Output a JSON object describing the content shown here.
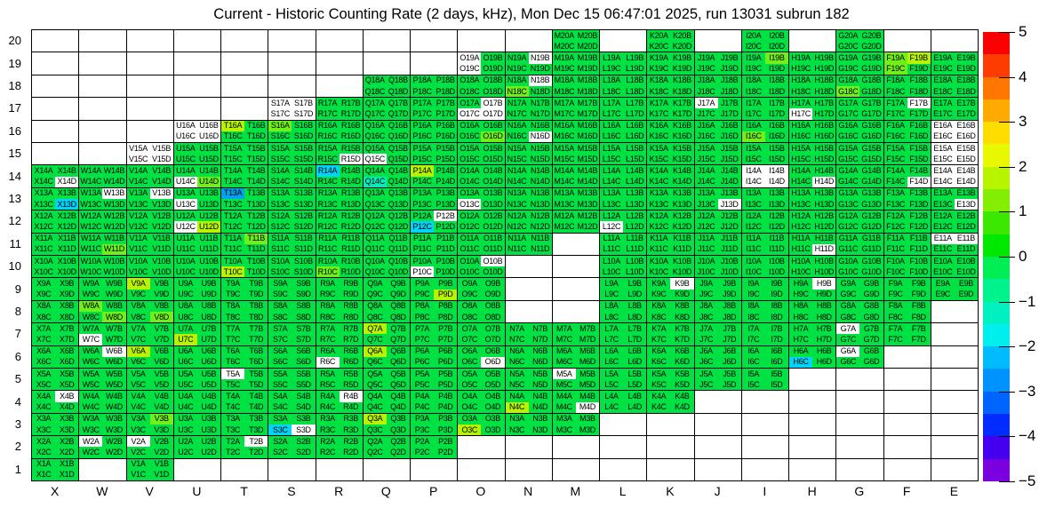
{
  "title": "Current - Historic Counting Rate (2 days, kHz), Mon Dec 15 06:47:01 2025, run 13031 subrun 182",
  "palette": {
    "default": "#00e243",
    "white": "#ffffff",
    "y1": "#70f018",
    "y2": "#b8f400",
    "aq": "#00eebe",
    "c1": "#00d4f8",
    "c2": "#00a2f0"
  },
  "chart_data": {
    "type": "heatmap",
    "title": "Current - Historic Counting Rate (2 days, kHz), Mon Dec 15 06:47:01 2025, run 13031 subrun 182",
    "xlabel": "",
    "ylabel": "",
    "value_range": [
      -5,
      5
    ],
    "grid": "on",
    "legend_position": "right-colorbar",
    "columns": [
      "X",
      "W",
      "V",
      "U",
      "T",
      "S",
      "R",
      "Q",
      "P",
      "O",
      "N",
      "M",
      "L",
      "K",
      "J",
      "I",
      "H",
      "G",
      "F",
      "E"
    ],
    "rows": [
      20,
      19,
      18,
      17,
      16,
      15,
      14,
      13,
      12,
      11,
      10,
      9,
      8,
      7,
      6,
      5,
      4,
      3,
      2,
      1
    ],
    "quadrant_letters": [
      "A",
      "B",
      "C",
      "D"
    ],
    "label_pattern": "{column}{row}{quadrant}",
    "cells_by_row": {
      "20": [
        "M",
        "K",
        "I",
        "G"
      ],
      "19": [
        "O",
        "N",
        "M",
        "L",
        "K",
        "J",
        "I",
        "H",
        "G",
        "F",
        "E"
      ],
      "18": [
        "Q",
        "P",
        "O",
        "N",
        "M",
        "L",
        "K",
        "J",
        "I",
        "H",
        "G",
        "F",
        "E"
      ],
      "17": [
        "S",
        "R",
        "Q",
        "P",
        "O",
        "N",
        "M",
        "L",
        "K",
        "J",
        "I",
        "H",
        "G",
        "F",
        "E"
      ],
      "16": [
        "U",
        "T",
        "S",
        "R",
        "Q",
        "P",
        "O",
        "N",
        "M",
        "L",
        "K",
        "J",
        "I",
        "H",
        "G",
        "F",
        "E"
      ],
      "15": [
        "V",
        "U",
        "T",
        "S",
        "R",
        "Q",
        "P",
        "O",
        "N",
        "M",
        "L",
        "K",
        "J",
        "I",
        "H",
        "G",
        "F",
        "E"
      ],
      "14": [
        "X",
        "W",
        "V",
        "U",
        "T",
        "S",
        "R",
        "Q",
        "P",
        "O",
        "N",
        "M",
        "L",
        "K",
        "J",
        "I",
        "H",
        "G",
        "F",
        "E"
      ],
      "13": [
        "X",
        "W",
        "V",
        "U",
        "T",
        "S",
        "R",
        "Q",
        "P",
        "O",
        "N",
        "M",
        "L",
        "K",
        "J",
        "I",
        "H",
        "G",
        "F",
        "E"
      ],
      "12": [
        "X",
        "W",
        "V",
        "U",
        "T",
        "S",
        "R",
        "Q",
        "P",
        "O",
        "N",
        "M",
        "L",
        "K",
        "J",
        "I",
        "H",
        "G",
        "F",
        "E"
      ],
      "11": [
        "X",
        "W",
        "V",
        "U",
        "T",
        "S",
        "R",
        "Q",
        "P",
        "O",
        "N",
        "L",
        "K",
        "J",
        "I",
        "H",
        "G",
        "F",
        "E"
      ],
      "10": [
        "X",
        "W",
        "V",
        "U",
        "T",
        "S",
        "R",
        "Q",
        "P",
        "O",
        "L",
        "K",
        "J",
        "I",
        "H",
        "G",
        "F",
        "E"
      ],
      "9": [
        "X",
        "W",
        "V",
        "U",
        "T",
        "S",
        "R",
        "Q",
        "P",
        "O",
        "L",
        "K",
        "J",
        "I",
        "H",
        "G",
        "F",
        "E"
      ],
      "8": [
        "X",
        "W",
        "V",
        "U",
        "T",
        "S",
        "R",
        "Q",
        "P",
        "O",
        "L",
        "K",
        "J",
        "I",
        "H",
        "G",
        "F"
      ],
      "7": [
        "X",
        "W",
        "V",
        "U",
        "T",
        "S",
        "R",
        "Q",
        "P",
        "O",
        "N",
        "M",
        "L",
        "K",
        "J",
        "I",
        "H",
        "G",
        "F"
      ],
      "6": [
        "X",
        "W",
        "V",
        "U",
        "T",
        "S",
        "R",
        "Q",
        "P",
        "O",
        "N",
        "M",
        "L",
        "K",
        "J",
        "I",
        "H",
        "G"
      ],
      "5": [
        "X",
        "W",
        "V",
        "U",
        "T",
        "S",
        "R",
        "Q",
        "P",
        "O",
        "N",
        "M",
        "L",
        "K",
        "J",
        "I"
      ],
      "4": [
        "X",
        "W",
        "V",
        "U",
        "T",
        "S",
        "R",
        "Q",
        "P",
        "O",
        "N",
        "M",
        "L",
        "K"
      ],
      "3": [
        "X",
        "W",
        "V",
        "U",
        "T",
        "S",
        "R",
        "Q",
        "P",
        "O",
        "N",
        "M"
      ],
      "2": [
        "X",
        "W",
        "V",
        "U",
        "T",
        "S",
        "R",
        "Q",
        "P"
      ],
      "1": [
        "X",
        "V"
      ]
    },
    "overrides": {
      "white": [
        "S17A",
        "S17B",
        "S17C",
        "S17D",
        "U16A",
        "U16B",
        "U16C",
        "U16D",
        "V15A",
        "V15B",
        "V15C",
        "V15D",
        "O19A",
        "O19C",
        "N19B",
        "N18B",
        "O17B",
        "O17C",
        "O17D",
        "N16D",
        "R15D",
        "Q15C",
        "J17A",
        "H17C",
        "F17B",
        "E16A",
        "E16B",
        "E16C",
        "E16D",
        "E15A",
        "E15B",
        "E15C",
        "E15D",
        "E14A",
        "E14B",
        "E14C",
        "E14D",
        "I14A",
        "I14B",
        "I14C",
        "I14D",
        "X14D",
        "U14C",
        "H14D",
        "F14D",
        "W13B",
        "V13B",
        "U13C",
        "O13C",
        "J13D",
        "E13D",
        "P12B",
        "U12C",
        "L12C",
        "H11D",
        "E11A",
        "E11B",
        "P10C",
        "O10B",
        "K9B",
        "H9B",
        "W7C",
        "G7A",
        "W6B",
        "R6C",
        "O6D",
        "G6A",
        "T5A",
        "M5A",
        "X4B",
        "R4B",
        "M4D",
        "S3D",
        "W2A",
        "V2A",
        "T2B"
      ],
      "y2": [
        "T16A",
        "F19B",
        "P14A",
        "U12D",
        "T10C",
        "V9A",
        "P9D",
        "U7C",
        "Q7A",
        "V6A",
        "Q6A",
        "N4C",
        "Q3A",
        "O3C"
      ],
      "y1": [
        "S16A",
        "O16D",
        "N18C",
        "G18C",
        "I19B",
        "F19A",
        "F19C",
        "I16C",
        "U14D",
        "W11D",
        "T11B",
        "R10C",
        "W8A",
        "W8D",
        "V8D",
        "V3B"
      ],
      "aq": [
        "Q14C"
      ],
      "c1": [
        "R14A",
        "X13D",
        "P12C",
        "S3C",
        "H6C"
      ],
      "c2": [
        "T13A"
      ]
    },
    "value_legend": {
      "default": 0,
      "y1": 0.75,
      "y2": 1.75,
      "aq": -1,
      "c1": -1.75,
      "c2": -2.5,
      "white": "no data"
    },
    "colorbar": {
      "range": [
        -5,
        5
      ],
      "tick_values": [
        5,
        4,
        3,
        2,
        1,
        0,
        -1,
        -2,
        -3,
        -4,
        -5
      ],
      "tick_labels": [
        "5",
        "4",
        "3",
        "2",
        "1",
        "0",
        "−1",
        "−2",
        "−3",
        "−4",
        "−5"
      ],
      "segment_colors": [
        "#fa0000",
        "#fc3c00",
        "#ff7700",
        "#ffaa00",
        "#ffdd00",
        "#e8f800",
        "#b8f400",
        "#84ee00",
        "#3ce800",
        "#00e800",
        "#00ee55",
        "#00f28c",
        "#00f0c0",
        "#00eeee",
        "#00bbff",
        "#0092ff",
        "#0064ff",
        "#002cff",
        "#4400ee",
        "#7a00e0"
      ]
    }
  }
}
